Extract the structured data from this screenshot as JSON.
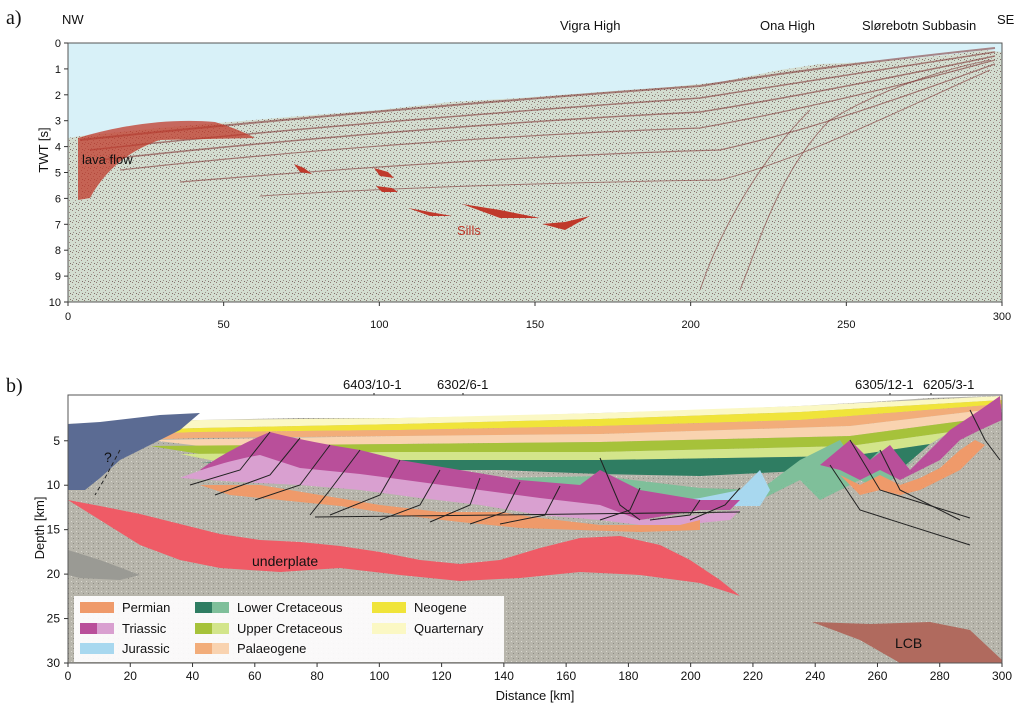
{
  "panel_a": {
    "letter": "a)",
    "nw": "NW",
    "se": "SE",
    "ylabel": "TWT [s]",
    "regions": [
      "Vigra High",
      "Ona High",
      "Slørebotn Subbasin"
    ],
    "annotations": [
      "lava flow",
      "Sills"
    ],
    "yticks": [
      "0",
      "1",
      "2",
      "3",
      "4",
      "5",
      "6",
      "7",
      "8",
      "9",
      "10"
    ],
    "xticks": [
      "0",
      "50",
      "100",
      "150",
      "200",
      "250",
      "300"
    ],
    "colors": {
      "sea": "#d8f1f8",
      "seismic": "#d2dccf",
      "reflector": "#8a2a2a",
      "lava": "#c0392b"
    }
  },
  "panel_b": {
    "letter": "b)",
    "ylabel": "Depth [km]",
    "xlabel": "Distance [km]",
    "wells": [
      "6403/10-1",
      "6302/6-1",
      "6305/12-1",
      "6205/3-1"
    ],
    "question": "?",
    "annotations": [
      "underplate",
      "LCB"
    ],
    "yticks": [
      "5",
      "10",
      "15",
      "20",
      "25",
      "30"
    ],
    "xticks": [
      "0",
      "20",
      "40",
      "60",
      "80",
      "100",
      "120",
      "140",
      "160",
      "180",
      "200",
      "220",
      "240",
      "260",
      "280",
      "300"
    ],
    "legend": [
      {
        "label": "Permian",
        "colors": [
          "#ef9a6a"
        ]
      },
      {
        "label": "Triassic",
        "colors": [
          "#b94f9a",
          "#d9a0d0"
        ]
      },
      {
        "label": "Jurassic",
        "colors": [
          "#a8d8ef"
        ]
      },
      {
        "label": "Lower Cretaceous",
        "colors": [
          "#2f7d62",
          "#7fbf9a"
        ]
      },
      {
        "label": "Upper Cretaceous",
        "colors": [
          "#a6c23a",
          "#d3e58b"
        ]
      },
      {
        "label": "Palaeogene",
        "colors": [
          "#f2ad7a",
          "#f9d3b0"
        ]
      },
      {
        "label": "Neogene",
        "colors": [
          "#f0e43a"
        ]
      },
      {
        "label": "Quarternary",
        "colors": [
          "#fbf8c4"
        ]
      }
    ],
    "colors": {
      "basement": "#b5b3a9",
      "underplate": "#ef5b66",
      "lcb": "#b06a5e",
      "lava": "#5b6b93"
    }
  }
}
